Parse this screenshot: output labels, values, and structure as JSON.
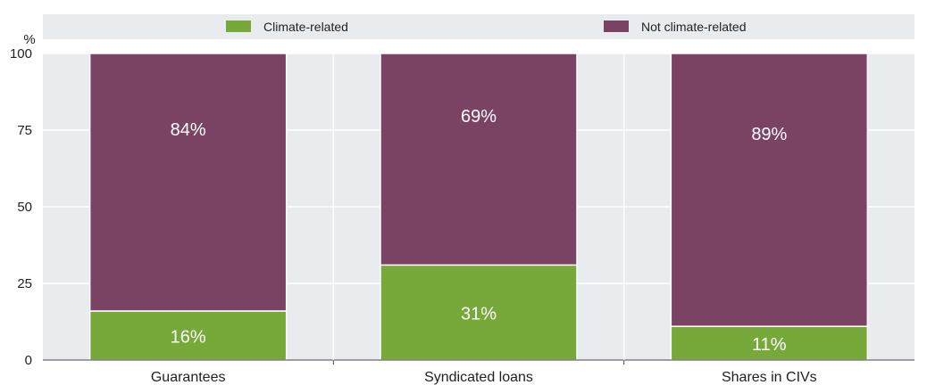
{
  "chart_data": {
    "type": "bar",
    "stacked": true,
    "categories": [
      "Guarantees",
      "Syndicated loans",
      "Shares in CIVs"
    ],
    "series": [
      {
        "name": "Climate-related",
        "values": [
          16,
          31,
          11
        ],
        "labels": [
          "16%",
          "31%",
          "11%"
        ],
        "color": "#76a83a"
      },
      {
        "name": "Not climate-related",
        "values": [
          84,
          69,
          89
        ],
        "labels": [
          "84%",
          "69%",
          "89%"
        ],
        "color": "#7a4363"
      }
    ],
    "ylabel": "%",
    "yticks": [
      0,
      25,
      50,
      75,
      100
    ],
    "ylim": [
      0,
      100
    ],
    "grid": true,
    "legend_position": "top"
  }
}
